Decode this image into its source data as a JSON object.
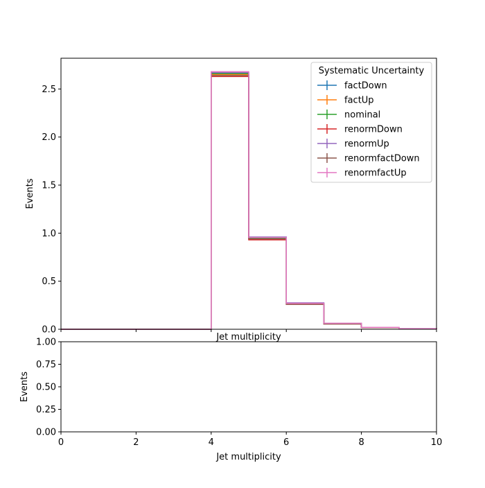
{
  "chart_data": [
    {
      "type": "line",
      "panel": "main",
      "xlabel": "Jet multiplicity",
      "ylabel": "Events",
      "xlim": [
        0,
        10
      ],
      "ylim": [
        0,
        2.82
      ],
      "xticks": [
        0,
        2,
        4,
        6,
        8,
        10
      ],
      "yticks": [
        0.0,
        0.5,
        1.0,
        1.5,
        2.0,
        2.5
      ],
      "ytick_labels": [
        "0.0",
        "0.5",
        "1.0",
        "1.5",
        "2.0",
        "2.5"
      ],
      "x_tick_labels_shown": false,
      "grid": false,
      "histtype": "step",
      "bin_edges": [
        0,
        1,
        2,
        3,
        4,
        5,
        6,
        7,
        8,
        9,
        10
      ],
      "legend": {
        "title": "Systematic Uncertainty",
        "placement": "top-right"
      },
      "series": [
        {
          "name": "factDown",
          "color": "#1f77b4",
          "values": [
            0,
            0,
            0,
            0,
            2.66,
            0.95,
            0.27,
            0.06,
            0.02,
            0.005
          ]
        },
        {
          "name": "factUp",
          "color": "#ff7f0e",
          "values": [
            0,
            0,
            0,
            0,
            2.65,
            0.94,
            0.265,
            0.06,
            0.02,
            0.005
          ]
        },
        {
          "name": "nominal",
          "color": "#2ca02c",
          "values": [
            0,
            0,
            0,
            0,
            2.66,
            0.95,
            0.27,
            0.06,
            0.02,
            0.005
          ]
        },
        {
          "name": "renormDown",
          "color": "#d62728",
          "values": [
            0,
            0,
            0,
            0,
            2.63,
            0.93,
            0.26,
            0.055,
            0.018,
            0.005
          ]
        },
        {
          "name": "renormUp",
          "color": "#9467bd",
          "values": [
            0,
            0,
            0,
            0,
            2.67,
            0.96,
            0.275,
            0.06,
            0.02,
            0.006
          ]
        },
        {
          "name": "renormfactDown",
          "color": "#8c564b",
          "values": [
            0,
            0,
            0,
            0,
            2.64,
            0.94,
            0.26,
            0.055,
            0.018,
            0.005
          ]
        },
        {
          "name": "renormfactUp",
          "color": "#e377c2",
          "values": [
            0,
            0,
            0,
            0,
            2.68,
            0.955,
            0.27,
            0.062,
            0.02,
            0.006
          ]
        }
      ]
    },
    {
      "type": "line",
      "panel": "ratio",
      "xlabel": "Jet multiplicity",
      "ylabel": "Events",
      "xlim": [
        0,
        10
      ],
      "ylim": [
        0,
        1
      ],
      "xticks": [
        0,
        2,
        4,
        6,
        8,
        10
      ],
      "xtick_labels": [
        "0",
        "2",
        "4",
        "6",
        "8",
        "10"
      ],
      "yticks": [
        0.0,
        0.25,
        0.5,
        0.75,
        1.0
      ],
      "ytick_labels": [
        "0.00",
        "0.25",
        "0.50",
        "0.75",
        "1.00"
      ],
      "grid": false,
      "series": []
    }
  ]
}
